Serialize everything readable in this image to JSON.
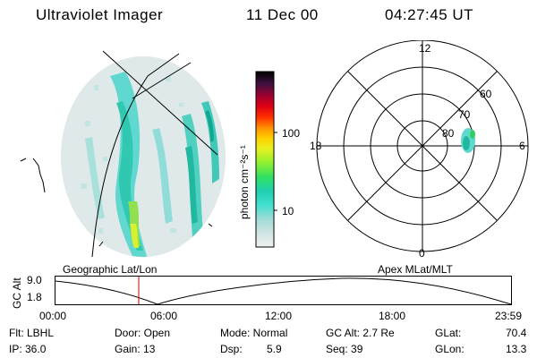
{
  "header": {
    "title": "Ultraviolet Imager",
    "date": "11 Dec 00",
    "time": "04:27:45 UT"
  },
  "colorbar": {
    "unit_label": "photon cm⁻²s⁻¹",
    "ticks": [
      "100",
      "10"
    ],
    "colors": [
      "#f0f0f0",
      "#d8e8e8",
      "#b0e0e0",
      "#60e8d0",
      "#20d8c0",
      "#30e060",
      "#80f040",
      "#e0f020",
      "#ffd000",
      "#ff8000",
      "#ff3000",
      "#e00010",
      "#a00030",
      "#400040",
      "#000000"
    ]
  },
  "polar_plot": {
    "mlt_labels": [
      "12",
      "18",
      "6",
      "0"
    ],
    "lat_labels": [
      "60",
      "70",
      "80"
    ]
  },
  "projection": {
    "left_label": "Geographic Lat/Lon",
    "right_label": "Apex MLat/MLT"
  },
  "altitude_plot": {
    "ylabel": "GC Alt",
    "yticks": [
      "9.0",
      "1.8"
    ],
    "xticks": [
      "00:00",
      "06:00",
      "12:00",
      "18:00",
      "23:59"
    ],
    "line_color": "#000000",
    "marker_color": "#cc0000"
  },
  "info": {
    "filter": "Flt: LBHL",
    "ip": "IP: 36.0",
    "door": "Door: Open",
    "gain": "Gain: 13",
    "mode": "Mode: Normal",
    "dsp_label": "Dsp:",
    "dsp_value": "5.9",
    "gc_alt": "GC Alt: 2.7 Re",
    "seq": "Seq: 39",
    "glat_label": "GLat:",
    "glat_value": "70.4",
    "glon_label": "GLon:",
    "glon_value": "13.3"
  }
}
